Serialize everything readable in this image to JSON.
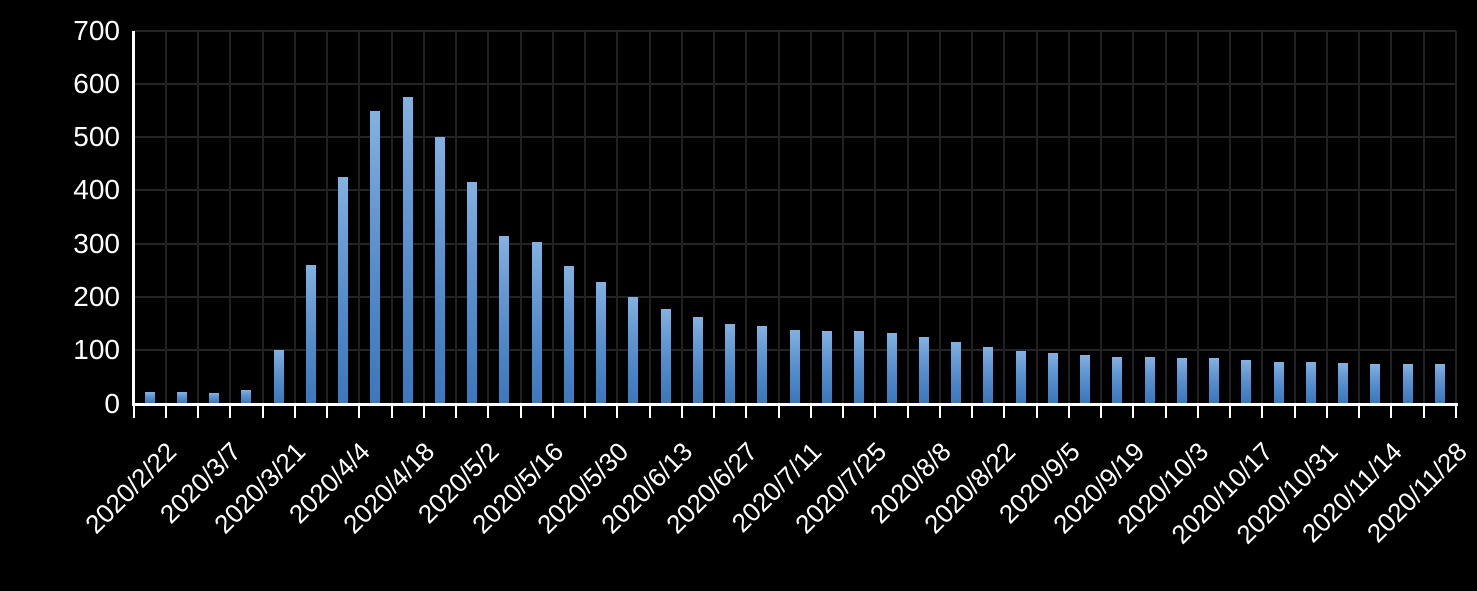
{
  "chart_data": {
    "type": "bar",
    "title": "",
    "xlabel": "",
    "ylabel": "",
    "x": [
      "2020/2/22",
      "2020/2/29",
      "2020/3/7",
      "2020/3/14",
      "2020/3/21",
      "2020/3/28",
      "2020/4/4",
      "2020/4/11",
      "2020/4/18",
      "2020/4/25",
      "2020/5/2",
      "2020/5/9",
      "2020/5/16",
      "2020/5/23",
      "2020/5/30",
      "2020/6/6",
      "2020/6/13",
      "2020/6/20",
      "2020/6/27",
      "2020/7/4",
      "2020/7/11",
      "2020/7/18",
      "2020/7/25",
      "2020/8/1",
      "2020/8/8",
      "2020/8/15",
      "2020/8/22",
      "2020/8/29",
      "2020/9/5",
      "2020/9/12",
      "2020/9/19",
      "2020/9/26",
      "2020/10/3",
      "2020/10/10",
      "2020/10/17",
      "2020/10/24",
      "2020/10/31",
      "2020/11/7",
      "2020/11/14",
      "2020/11/21",
      "2020/11/28"
    ],
    "values": [
      22,
      22,
      20,
      25,
      100,
      260,
      425,
      548,
      575,
      500,
      415,
      315,
      303,
      258,
      228,
      200,
      178,
      162,
      150,
      145,
      138,
      136,
      136,
      133,
      125,
      116,
      106,
      98,
      95,
      91,
      87,
      87,
      85,
      85,
      81,
      78,
      78,
      76,
      74,
      74,
      75
    ],
    "x_tick_labels": [
      "2020/2/22",
      "2020/3/7",
      "2020/3/21",
      "2020/4/4",
      "2020/4/18",
      "2020/5/2",
      "2020/5/16",
      "2020/5/30",
      "2020/6/13",
      "2020/6/27",
      "2020/7/11",
      "2020/7/25",
      "2020/8/8",
      "2020/8/22",
      "2020/9/5",
      "2020/9/19",
      "2020/10/3",
      "2020/10/17",
      "2020/10/31",
      "2020/11/14",
      "2020/11/28"
    ],
    "x_label_every_n_bars": 2,
    "y_ticks": [
      0,
      100,
      200,
      300,
      400,
      500,
      600,
      700
    ],
    "ylim": [
      0,
      700
    ],
    "grid": "on",
    "legend": "none",
    "colors": {
      "background": "#000000",
      "bar_top": "#83B2E2",
      "bar_bottom": "#3D77BC",
      "gridline": "#242424",
      "axis": "#ffffff",
      "text": "#ffffff"
    }
  }
}
